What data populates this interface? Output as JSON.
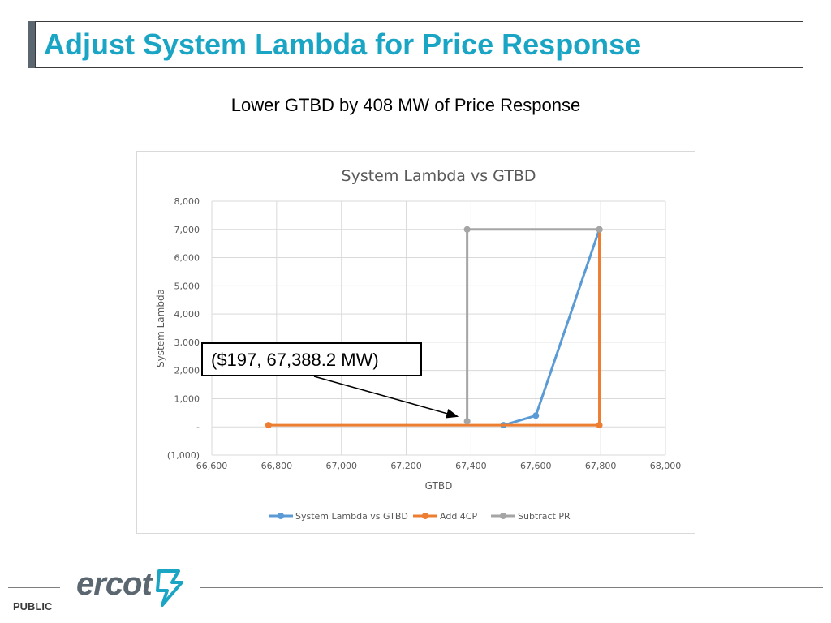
{
  "header": {
    "title": "Adjust System Lambda for Price Response"
  },
  "subtitle": "Lower GTBD by 408 MW of Price Response",
  "callout": {
    "text": "($197, 67,388.2 MW)"
  },
  "footer": {
    "logo_text": "ercot",
    "classification": "PUBLIC"
  },
  "colors": {
    "title": "#1aa5c4",
    "series1": "#5b9bd5",
    "series2": "#ed7d31",
    "series3": "#a5a5a5",
    "logo": "#5b6770"
  },
  "chart_data": {
    "type": "line",
    "title": "System Lambda vs GTBD",
    "xlabel": "GTBD",
    "ylabel": "System Lambda",
    "xlim": [
      66600,
      68000
    ],
    "ylim": [
      -1000,
      8000
    ],
    "xticks": [
      66600,
      66800,
      67000,
      67200,
      67400,
      67600,
      67800,
      68000
    ],
    "xtick_labels": [
      "66,600",
      "66,800",
      "67,000",
      "67,200",
      "67,400",
      "67,600",
      "67,800",
      "68,000"
    ],
    "yticks": [
      -1000,
      0,
      1000,
      2000,
      3000,
      4000,
      5000,
      6000,
      7000,
      8000
    ],
    "ytick_labels": [
      "(1,000)",
      "-",
      "1,000",
      "2,000",
      "3,000",
      "4,000",
      "5,000",
      "6,000",
      "7,000",
      "8,000"
    ],
    "grid": true,
    "legend_position": "bottom",
    "series": [
      {
        "name": "System Lambda vs GTBD",
        "color": "#5b9bd5",
        "points": [
          [
            67500,
            60
          ],
          [
            67600,
            400
          ],
          [
            67796,
            7000
          ]
        ]
      },
      {
        "name": "Add 4CP",
        "color": "#ed7d31",
        "points": [
          [
            66775,
            60
          ],
          [
            67796,
            60
          ],
          [
            67796,
            7000
          ]
        ]
      },
      {
        "name": "Subtract PR",
        "color": "#a5a5a5",
        "points": [
          [
            67388,
            197
          ],
          [
            67388,
            7000
          ],
          [
            67796,
            7000
          ]
        ]
      }
    ],
    "annotation": {
      "text": "($197, 67,388.2 MW)",
      "x": 67388.2,
      "y": 197
    }
  }
}
